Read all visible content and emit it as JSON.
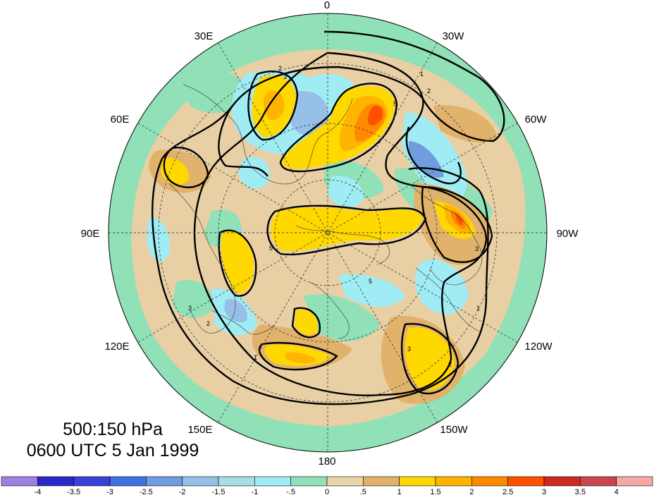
{
  "title": {
    "level": "500:150 hPa",
    "time": "0600 UTC 5 Jan 1999"
  },
  "map": {
    "projection": "polar-stereographic-north",
    "longitude_labels": [
      "0",
      "30W",
      "60W",
      "90W",
      "120W",
      "150W",
      "180",
      "150E",
      "120E",
      "90E",
      "60E",
      "30E"
    ],
    "base_color": "#e8cfa4"
  },
  "colorbar": {
    "ticks": [
      "-4",
      "-3.5",
      "-3",
      "-2.5",
      "-2",
      "-1.5",
      "-1",
      "-.5",
      "0",
      ".5",
      "1",
      "1.5",
      "2",
      "2.5",
      "3",
      "3.5",
      "4"
    ],
    "colors": [
      "#9f7fdf",
      "#2a26c9",
      "#3a3fd9",
      "#4070e0",
      "#6f9ddf",
      "#96c0e8",
      "#a8dde8",
      "#a0ecf5",
      "#90e0b8",
      "#e8d4a8",
      "#e0b26b",
      "#ffd800",
      "#ffb400",
      "#ff8a00",
      "#ff5000",
      "#cc2a20",
      "#c8464c",
      "#f5a8a8"
    ]
  },
  "contour_labels": [
    "2",
    "3",
    "5",
    "3",
    "2",
    "1",
    "5",
    "3",
    "2",
    "1",
    "5",
    "3",
    "2",
    "1"
  ]
}
